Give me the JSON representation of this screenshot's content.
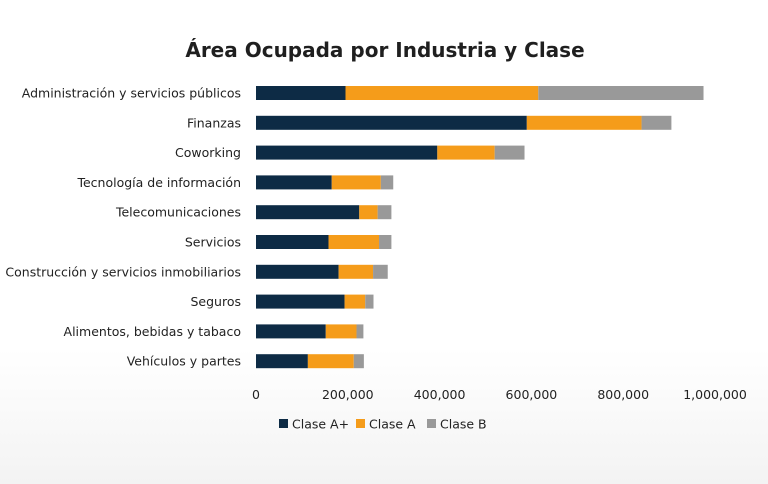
{
  "chart_data": {
    "type": "bar",
    "orientation": "horizontal",
    "stacked": true,
    "title": "Área Ocupada por Industria y Clase",
    "xlabel": "",
    "ylabel": "",
    "categories": [
      "Administración y servicios públicos",
      "Finanzas",
      "Coworking",
      "Tecnología de información",
      "Telecomunicaciones",
      "Servicios",
      "Construcción y servicios inmobiliarios",
      "Seguros",
      "Alimentos, bebidas y tabaco",
      "Vehículos y partes"
    ],
    "series": [
      {
        "name": "Clase A+",
        "color": "#0d2b45",
        "values": [
          195000,
          590000,
          395000,
          165000,
          225000,
          158000,
          180000,
          193000,
          152000,
          113000
        ]
      },
      {
        "name": "Clase A",
        "color": "#f59c1a",
        "values": [
          420000,
          250000,
          125000,
          107000,
          40000,
          110000,
          75000,
          45000,
          67000,
          100000
        ]
      },
      {
        "name": "Clase B",
        "color": "#999999",
        "values": [
          360000,
          65000,
          65000,
          27000,
          30000,
          27000,
          32000,
          18000,
          15000,
          22000
        ]
      }
    ],
    "xlim": [
      0,
      1000000
    ],
    "xticks": [
      0,
      200000,
      400000,
      600000,
      800000,
      1000000
    ],
    "xtick_labels": [
      "0",
      "200,000",
      "400,000",
      "600,000",
      "800,000",
      "1,000,000"
    ],
    "grid": false,
    "legend_position": "bottom"
  }
}
